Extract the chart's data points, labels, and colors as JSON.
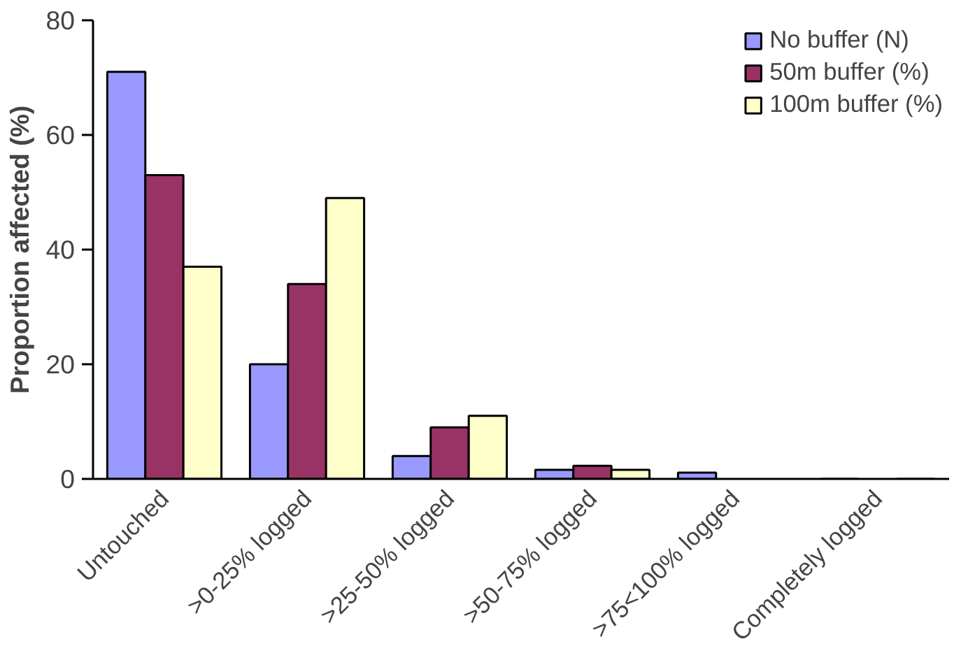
{
  "chart_data": {
    "type": "bar",
    "ylabel": "Proportion affected (%)",
    "categories": [
      "Untouched",
      ">0-25% logged",
      ">25-50% logged",
      ">50-75% logged",
      ">75<100% logged",
      "Completely logged"
    ],
    "series": [
      {
        "name": "No buffer (N)",
        "color": "#9999ff",
        "values": [
          71,
          20,
          4,
          1.6,
          1.1,
          0
        ]
      },
      {
        "name": "50m buffer (%)",
        "color": "#993366",
        "values": [
          53,
          34,
          9,
          2.3,
          null,
          null
        ]
      },
      {
        "name": "100m buffer (%)",
        "color": "#ffffcc",
        "values": [
          37,
          49,
          11,
          1.6,
          null,
          0
        ]
      }
    ],
    "ylim": [
      0,
      80
    ],
    "yticks": [
      0,
      20,
      40,
      60,
      80
    ],
    "grid": false,
    "legend": "top right"
  }
}
